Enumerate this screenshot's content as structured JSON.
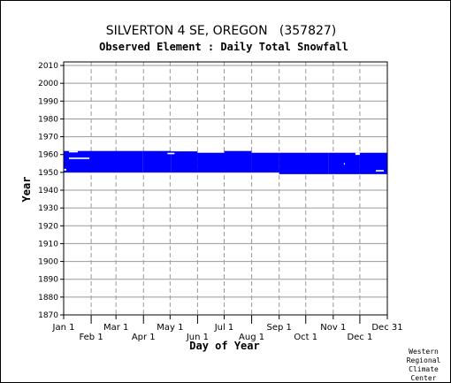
{
  "chart_data": {
    "type": "heatmap",
    "title": "SILVERTON 4 SE, OREGON   (357827)",
    "subtitle": "Observed Element : Daily Total Snowfall",
    "xlabel": "Day of Year",
    "ylabel": "Year",
    "x_ticks_top": [
      "Jan 1",
      "Mar 1",
      "May 1",
      "Jul 1",
      "Sep 1",
      "Nov 1",
      "Dec 31"
    ],
    "x_ticks_bottom": [
      "Feb 1",
      "Apr 1",
      "Jun 1",
      "Aug 1",
      "Oct 1",
      "Dec 1"
    ],
    "xlim": [
      1,
      365
    ],
    "ylim": [
      1870,
      2012
    ],
    "y_ticks": [
      1870,
      1880,
      1890,
      1900,
      1910,
      1920,
      1930,
      1940,
      1950,
      1960,
      1970,
      1980,
      1990,
      2000,
      2010
    ],
    "grid": true,
    "data_color": "#0000ff",
    "coverage": [
      {
        "x_start": 1,
        "x_end": 90,
        "y_start": 1950,
        "y_end": 1962
      },
      {
        "x_start": 90,
        "x_end": 122,
        "y_start": 1950,
        "y_end": 1962
      },
      {
        "x_start": 122,
        "x_end": 152,
        "y_start": 1950,
        "y_end": 1961.8
      },
      {
        "x_start": 152,
        "x_end": 182,
        "y_start": 1950,
        "y_end": 1961
      },
      {
        "x_start": 182,
        "x_end": 213,
        "y_start": 1950,
        "y_end": 1962
      },
      {
        "x_start": 213,
        "x_end": 244,
        "y_start": 1950,
        "y_end": 1961
      },
      {
        "x_start": 244,
        "x_end": 300,
        "y_start": 1949,
        "y_end": 1961
      },
      {
        "x_start": 300,
        "x_end": 335,
        "y_start": 1949,
        "y_end": 1961
      },
      {
        "x_start": 335,
        "x_end": 366,
        "y_start": 1949,
        "y_end": 1961
      }
    ],
    "gaps": [
      {
        "x_start": 7,
        "x_end": 30,
        "y_start": 1957.5,
        "y_end": 1958.3
      },
      {
        "x_start": 1,
        "x_end": 4,
        "y_start": 1951,
        "y_end": 1952
      },
      {
        "x_start": 7,
        "x_end": 17,
        "y_start": 1961.2,
        "y_end": 1962
      },
      {
        "x_start": 118,
        "x_end": 126,
        "y_start": 1960.2,
        "y_end": 1961
      },
      {
        "x_start": 317,
        "x_end": 318,
        "y_start": 1954.3,
        "y_end": 1955.3
      },
      {
        "x_start": 330,
        "x_end": 335,
        "y_start": 1959.8,
        "y_end": 1961
      },
      {
        "x_start": 353,
        "x_end": 362,
        "y_start": 1950.5,
        "y_end": 1951.3
      }
    ]
  },
  "credit": {
    "line1": "Western",
    "line2": "Regional",
    "line3": "Climate",
    "line4": "Center"
  }
}
